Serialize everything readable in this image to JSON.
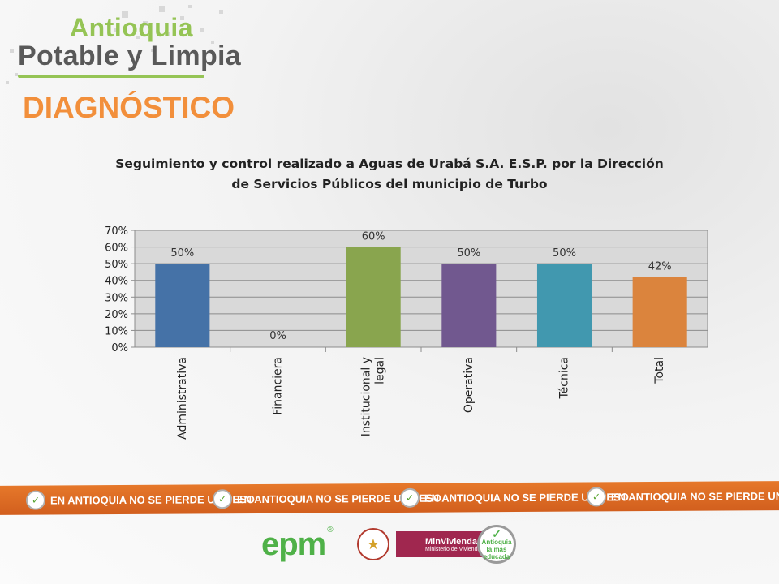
{
  "brand": {
    "line1": "Antioquia",
    "line2": "Potable y Limpia"
  },
  "heading": "DIAGNÓSTICO",
  "chart_data": {
    "type": "bar",
    "title_lines": [
      "Seguimiento y control realizado a Aguas de Urabá S.A. E.S.P. por la Dirección",
      "de Servicios Públicos del municipio de Turbo"
    ],
    "categories": [
      "Administrativa",
      "Financiera",
      "Institucional y legal",
      "Operativa",
      "Técnica",
      "Total"
    ],
    "category_lines": [
      [
        "Administrativa"
      ],
      [
        "Financiera"
      ],
      [
        "Institucional y",
        "legal"
      ],
      [
        "Operativa"
      ],
      [
        "Técnica"
      ],
      [
        "Total"
      ]
    ],
    "values": [
      50,
      0,
      60,
      50,
      50,
      42
    ],
    "data_labels": [
      "50%",
      "0%",
      "60%",
      "50%",
      "50%",
      "42%"
    ],
    "bar_colors": [
      "#4572a7",
      "#4572a7",
      "#89a54e",
      "#71588f",
      "#4198af",
      "#db843d"
    ],
    "yticks": [
      0,
      10,
      20,
      30,
      40,
      50,
      60,
      70
    ],
    "ytick_labels": [
      "0%",
      "10%",
      "20%",
      "30%",
      "40%",
      "50%",
      "60%",
      "70%"
    ],
    "ylim": [
      0,
      70
    ],
    "grid": true,
    "legend": "none",
    "plot_background": "#d9d9d9"
  },
  "banner": {
    "text": "EN ANTIOQUIA NO SE PIERDE UN PESO",
    "repeat": 4,
    "color": "#e06c25"
  },
  "footer": {
    "epm": "epm",
    "epm_reg": "®",
    "minvivienda_title": "MinVivienda",
    "minvivienda_sub": "Ministerio de Vivienda",
    "edu_line1": "Antioquia",
    "edu_line2": "la más",
    "edu_line3": "educada"
  }
}
